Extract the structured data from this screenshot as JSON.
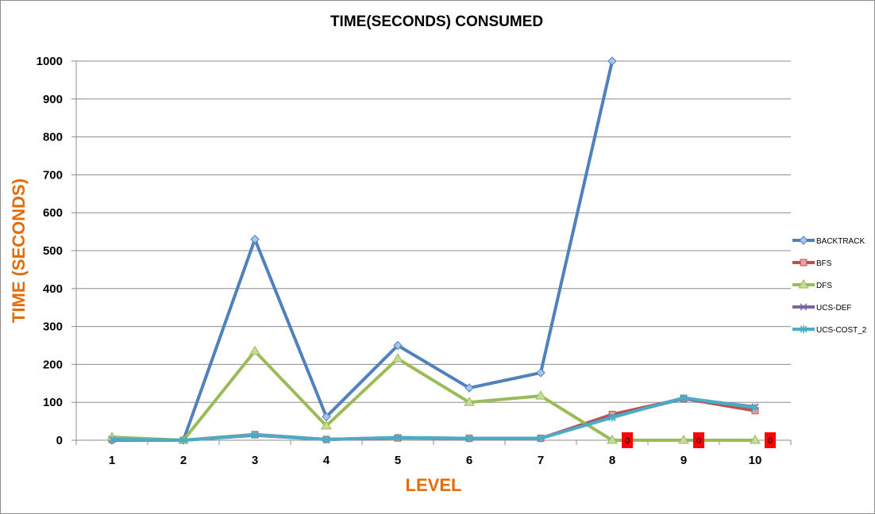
{
  "chart_data": {
    "type": "line",
    "title": "TIME(SECONDS) CONSUMED",
    "xlabel": "LEVEL",
    "ylabel": "TIME (SECONDS)",
    "categories": [
      "1",
      "2",
      "3",
      "4",
      "5",
      "6",
      "7",
      "8",
      "9",
      "10"
    ],
    "ylim": [
      0,
      1000
    ],
    "yticks": [
      "0",
      "100",
      "200",
      "300",
      "400",
      "500",
      "600",
      "700",
      "800",
      "900",
      "1000"
    ],
    "grid": "horizontal",
    "legend_position": "right",
    "series": [
      {
        "name": "BACKTRACK",
        "color": "#4f81bd",
        "marker": "diamond",
        "values": [
          0,
          0,
          530,
          62,
          250,
          138,
          178,
          1000,
          null,
          null
        ]
      },
      {
        "name": "BFS",
        "color": "#c0504d",
        "marker": "square",
        "values": [
          2,
          0,
          15,
          2,
          6,
          5,
          5,
          68,
          110,
          78
        ]
      },
      {
        "name": "DFS",
        "color": "#9bbb59",
        "marker": "triangle",
        "values": [
          8,
          0,
          235,
          38,
          215,
          100,
          117,
          0,
          0,
          0
        ]
      },
      {
        "name": "UCS-DEF",
        "color": "#8064a2",
        "marker": "x",
        "values": [
          2,
          0,
          13,
          2,
          7,
          5,
          5,
          62,
          110,
          88
        ]
      },
      {
        "name": "UCS-COST_2",
        "color": "#4bacc6",
        "marker": "star",
        "values": [
          2,
          0,
          14,
          2,
          7,
          5,
          5,
          60,
          112,
          86
        ]
      }
    ],
    "annotations": [
      {
        "category": "8",
        "text": "0",
        "color": "#ff0000"
      },
      {
        "category": "9",
        "text": "0",
        "color": "#ff0000"
      },
      {
        "category": "10",
        "text": "0",
        "color": "#ff0000"
      }
    ]
  }
}
